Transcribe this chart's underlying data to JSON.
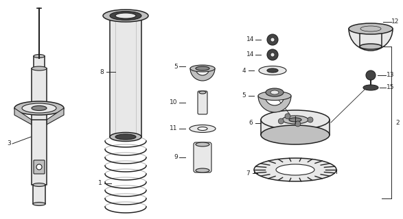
{
  "bg_color": "#ffffff",
  "line_color": "#222222",
  "gray_light": "#e8e8e8",
  "gray_mid": "#c0c0c0",
  "gray_dark": "#888888",
  "gray_darkest": "#444444",
  "label_fs": 6.5,
  "figsize": [
    5.87,
    3.2
  ],
  "dpi": 100
}
